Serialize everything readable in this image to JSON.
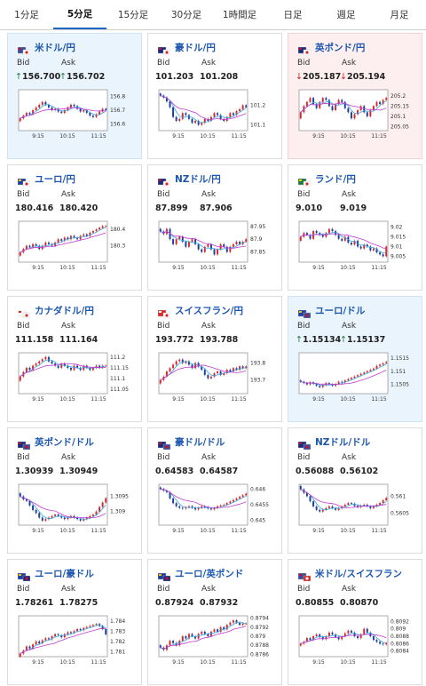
{
  "tabs": [
    {
      "label": "1分足",
      "active": false
    },
    {
      "label": "5分足",
      "active": true
    },
    {
      "label": "15分足",
      "active": false
    },
    {
      "label": "30分足",
      "active": false
    },
    {
      "label": "1時間足",
      "active": false
    },
    {
      "label": "日足",
      "active": false
    },
    {
      "label": "週足",
      "active": false
    },
    {
      "label": "月足",
      "active": false
    }
  ],
  "labels": {
    "bid": "Bid",
    "ask": "Ask"
  },
  "colors": {
    "accent": "#1f67c5",
    "up_candle": "#d52a2a",
    "down_candle": "#1c3f9c",
    "ma_short": "#3aa7e0",
    "ma_long": "#c23ad2",
    "up_bg": "#eaf4fc",
    "down_bg": "#fdefef"
  },
  "pairs": [
    {
      "name": "米ドル/円",
      "flag": "us-jp-flag-icon",
      "trend": "up",
      "bid": "156.700",
      "ask": "156.702",
      "chart_data": {
        "type": "candlestick",
        "x_ticks": [
          "9:15",
          "10:15",
          "11:15"
        ],
        "y_ticks": [
          "156.8",
          "156.7",
          "156.6"
        ],
        "ylim": [
          156.55,
          156.85
        ],
        "closes": [
          156.64,
          156.66,
          156.68,
          156.67,
          156.7,
          156.72,
          156.74,
          156.76,
          156.74,
          156.72,
          156.7,
          156.71,
          156.69,
          156.68,
          156.7,
          156.72,
          156.74,
          156.73,
          156.71,
          156.69,
          156.7,
          156.68,
          156.66,
          156.65,
          156.67,
          156.69,
          156.71,
          156.7
        ]
      }
    },
    {
      "name": "豪ドル/円",
      "flag": "au-jp-flag-icon",
      "trend": "none",
      "bid": "101.203",
      "ask": "101.208",
      "chart_data": {
        "type": "candlestick",
        "x_ticks": [
          "9:15",
          "10:15",
          "11:15"
        ],
        "y_ticks": [
          "101.2",
          "101.1"
        ],
        "ylim": [
          101.07,
          101.28
        ],
        "closes": [
          101.25,
          101.24,
          101.22,
          101.19,
          101.14,
          101.12,
          101.13,
          101.16,
          101.15,
          101.13,
          101.11,
          101.12,
          101.1,
          101.11,
          101.13,
          101.12,
          101.14,
          101.16,
          101.15,
          101.13,
          101.12,
          101.14,
          101.16,
          101.15,
          101.17,
          101.18,
          101.2,
          101.19
        ]
      }
    },
    {
      "name": "英ポンド/円",
      "flag": "gb-jp-flag-icon",
      "trend": "down",
      "bid": "205.187",
      "ask": "205.194",
      "chart_data": {
        "type": "candlestick",
        "x_ticks": [
          "9:15",
          "10:15",
          "11:15"
        ],
        "y_ticks": [
          "205.2",
          "205.15",
          "205.1",
          "205.05"
        ],
        "ylim": [
          205.03,
          205.23
        ],
        "closes": [
          205.12,
          205.15,
          205.17,
          205.19,
          205.16,
          205.14,
          205.17,
          205.19,
          205.18,
          205.15,
          205.13,
          205.16,
          205.18,
          205.17,
          205.14,
          205.12,
          205.09,
          205.11,
          205.13,
          205.15,
          205.12,
          205.1,
          205.13,
          205.15,
          205.17,
          205.16,
          205.18,
          205.19
        ]
      }
    },
    {
      "name": "ユーロ/円",
      "flag": "eu-jp-flag-icon",
      "trend": "none",
      "bid": "180.416",
      "ask": "180.420",
      "chart_data": {
        "type": "candlestick",
        "x_ticks": [
          "9:15",
          "10:15",
          "11:15"
        ],
        "y_ticks": [
          "180.4",
          "180.3"
        ],
        "ylim": [
          180.2,
          180.45
        ],
        "closes": [
          180.26,
          180.28,
          180.3,
          180.29,
          180.31,
          180.3,
          180.28,
          180.3,
          180.32,
          180.31,
          180.3,
          180.32,
          180.34,
          180.33,
          180.35,
          180.34,
          180.36,
          180.35,
          180.34,
          180.36,
          180.37,
          180.36,
          180.38,
          180.39,
          180.4,
          180.41,
          180.42,
          180.42
        ]
      }
    },
    {
      "name": "NZドル/円",
      "flag": "nz-jp-flag-icon",
      "trend": "none",
      "bid": "87.899",
      "ask": "87.906",
      "chart_data": {
        "type": "candlestick",
        "x_ticks": [
          "9:15",
          "10:15",
          "11:15"
        ],
        "y_ticks": [
          "87.95",
          "87.9",
          "87.85"
        ],
        "ylim": [
          87.81,
          87.97
        ],
        "closes": [
          87.93,
          87.92,
          87.94,
          87.9,
          87.88,
          87.9,
          87.91,
          87.89,
          87.87,
          87.89,
          87.9,
          87.88,
          87.86,
          87.85,
          87.87,
          87.88,
          87.86,
          87.84,
          87.86,
          87.88,
          87.87,
          87.85,
          87.87,
          87.88,
          87.89,
          87.88,
          87.89,
          87.9
        ]
      }
    },
    {
      "name": "ランド/円",
      "flag": "za-jp-flag-icon",
      "trend": "none",
      "bid": "9.010",
      "ask": "9.019",
      "chart_data": {
        "type": "candlestick",
        "x_ticks": [
          "9:15",
          "10:15",
          "11:15"
        ],
        "y_ticks": [
          "9.02",
          "9.015",
          "9.01",
          "9.005"
        ],
        "ylim": [
          9.002,
          9.023
        ],
        "closes": [
          9.015,
          9.017,
          9.016,
          9.014,
          9.018,
          9.017,
          9.016,
          9.015,
          9.017,
          9.019,
          9.018,
          9.016,
          9.014,
          9.013,
          9.015,
          9.012,
          9.011,
          9.013,
          9.01,
          9.009,
          9.011,
          9.01,
          9.008,
          9.009,
          9.007,
          9.006,
          9.005,
          9.01
        ]
      }
    },
    {
      "name": "カナダドル/円",
      "flag": "ca-jp-flag-icon",
      "trend": "none",
      "bid": "111.158",
      "ask": "111.164",
      "chart_data": {
        "type": "candlestick",
        "x_ticks": [
          "9:15",
          "10:15",
          "11:15"
        ],
        "y_ticks": [
          "111.2",
          "111.15",
          "111.1",
          "111.05"
        ],
        "ylim": [
          111.03,
          111.22
        ],
        "closes": [
          111.11,
          111.13,
          111.15,
          111.14,
          111.16,
          111.17,
          111.18,
          111.19,
          111.2,
          111.18,
          111.17,
          111.16,
          111.15,
          111.17,
          111.16,
          111.15,
          111.14,
          111.16,
          111.15,
          111.14,
          111.16,
          111.15,
          111.14,
          111.15,
          111.16,
          111.15,
          111.16,
          111.16
        ]
      }
    },
    {
      "name": "スイスフラン/円",
      "flag": "ch-jp-flag-icon",
      "trend": "none",
      "bid": "193.772",
      "ask": "193.788",
      "chart_data": {
        "type": "candlestick",
        "x_ticks": [
          "9:15",
          "10:15",
          "11:15"
        ],
        "y_ticks": [
          "193.8",
          "193.7"
        ],
        "ylim": [
          193.62,
          193.86
        ],
        "closes": [
          193.7,
          193.72,
          193.75,
          193.77,
          193.79,
          193.81,
          193.82,
          193.8,
          193.81,
          193.79,
          193.77,
          193.8,
          193.78,
          193.76,
          193.73,
          193.71,
          193.72,
          193.74,
          193.75,
          193.73,
          193.74,
          193.76,
          193.75,
          193.77,
          193.76,
          193.78,
          193.77,
          193.78
        ]
      }
    },
    {
      "name": "ユーロ/ドル",
      "flag": "eu-us-flag-icon",
      "trend": "up",
      "bid": "1.15134",
      "ask": "1.15137",
      "chart_data": {
        "type": "candlestick",
        "x_ticks": [
          "9:15",
          "10:15",
          "11:15"
        ],
        "y_ticks": [
          "1.1515",
          "1.151",
          "1.1505"
        ],
        "ylim": [
          1.15015,
          1.1517
        ],
        "closes": [
          1.1506,
          1.15055,
          1.1505,
          1.15058,
          1.15052,
          1.15045,
          1.1504,
          1.15048,
          1.15055,
          1.1505,
          1.15045,
          1.15052,
          1.1506,
          1.15058,
          1.15065,
          1.1507,
          1.15075,
          1.1508,
          1.15085,
          1.1509,
          1.15095,
          1.151,
          1.15105,
          1.1511,
          1.1512,
          1.15125,
          1.1513,
          1.15135
        ]
      }
    },
    {
      "name": "英ポンド/ドル",
      "flag": "gb-us-flag-icon",
      "trend": "none",
      "bid": "1.30939",
      "ask": "1.30949",
      "chart_data": {
        "type": "candlestick",
        "x_ticks": [
          "9:15",
          "10:15",
          "11:15"
        ],
        "y_ticks": [
          "1.3095",
          "1.309"
        ],
        "ylim": [
          1.30855,
          1.3099
        ],
        "closes": [
          1.3095,
          1.3094,
          1.30935,
          1.3092,
          1.30905,
          1.30895,
          1.3088,
          1.3087,
          1.30875,
          1.3088,
          1.30885,
          1.3089,
          1.30885,
          1.3088,
          1.30875,
          1.3088,
          1.30885,
          1.3088,
          1.30875,
          1.3087,
          1.30875,
          1.3088,
          1.30885,
          1.3089,
          1.309,
          1.30915,
          1.3093,
          1.30944
        ]
      }
    },
    {
      "name": "豪ドル/ドル",
      "flag": "au-us-flag-icon",
      "trend": "none",
      "bid": "0.64583",
      "ask": "0.64587",
      "chart_data": {
        "type": "candlestick",
        "x_ticks": [
          "9:15",
          "10:15",
          "11:15"
        ],
        "y_ticks": [
          "0.646",
          "0.6455",
          "0.645"
        ],
        "ylim": [
          0.64485,
          0.64615
        ],
        "closes": [
          0.646,
          0.64595,
          0.6459,
          0.6457,
          0.64555,
          0.64545,
          0.6454,
          0.64538,
          0.64542,
          0.64545,
          0.6454,
          0.64535,
          0.6454,
          0.64545,
          0.64542,
          0.64538,
          0.64535,
          0.6454,
          0.64545,
          0.64548,
          0.6455,
          0.64555,
          0.6456,
          0.64565,
          0.6457,
          0.64575,
          0.6458,
          0.64585
        ]
      }
    },
    {
      "name": "NZドル/ドル",
      "flag": "nz-us-flag-icon",
      "trend": "none",
      "bid": "0.56088",
      "ask": "0.56102",
      "chart_data": {
        "type": "candlestick",
        "x_ticks": [
          "9:15",
          "10:15",
          "11:15"
        ],
        "y_ticks": [
          "0.561",
          "0.5605"
        ],
        "ylim": [
          0.56015,
          0.56135
        ],
        "closes": [
          0.5612,
          0.5611,
          0.561,
          0.56085,
          0.5607,
          0.5606,
          0.56055,
          0.5606,
          0.56065,
          0.5607,
          0.56065,
          0.5606,
          0.56065,
          0.5607,
          0.56075,
          0.5608,
          0.56078,
          0.56072,
          0.56068,
          0.56072,
          0.56075,
          0.5607,
          0.56065,
          0.5607,
          0.56075,
          0.5608,
          0.56088,
          0.56095
        ]
      }
    },
    {
      "name": "ユーロ/豪ドル",
      "flag": "eu-au-flag-icon",
      "trend": "none",
      "bid": "1.78261",
      "ask": "1.78275",
      "chart_data": {
        "type": "candlestick",
        "x_ticks": [
          "9:15",
          "10:15",
          "11:15"
        ],
        "y_ticks": [
          "1.784",
          "1.783",
          "1.782",
          "1.781"
        ],
        "ylim": [
          1.7805,
          1.7845
        ],
        "closes": [
          1.7808,
          1.7811,
          1.7815,
          1.7813,
          1.7817,
          1.782,
          1.7818,
          1.7821,
          1.7823,
          1.7822,
          1.7825,
          1.7827,
          1.7826,
          1.7824,
          1.7827,
          1.7829,
          1.7828,
          1.783,
          1.7832,
          1.7831,
          1.7833,
          1.7834,
          1.7835,
          1.7836,
          1.7837,
          1.7835,
          1.7832,
          1.78268
        ]
      }
    },
    {
      "name": "ユーロ/英ポンド",
      "flag": "eu-gb-flag-icon",
      "trend": "none",
      "bid": "0.87924",
      "ask": "0.87932",
      "chart_data": {
        "type": "candlestick",
        "x_ticks": [
          "9:15",
          "10:15",
          "11:15"
        ],
        "y_ticks": [
          "0.8794",
          "0.8792",
          "0.879",
          "0.8788",
          "0.8786"
        ],
        "ylim": [
          0.87855,
          0.87945
        ],
        "closes": [
          0.87875,
          0.8787,
          0.8788,
          0.8789,
          0.87885,
          0.8788,
          0.8789,
          0.879,
          0.87895,
          0.87905,
          0.879,
          0.87895,
          0.87905,
          0.8791,
          0.87905,
          0.879,
          0.8791,
          0.87915,
          0.8791,
          0.8792,
          0.87915,
          0.87925,
          0.8793,
          0.87935,
          0.8793,
          0.87925,
          0.87928,
          0.87928
        ]
      }
    },
    {
      "name": "米ドル/スイスフラン",
      "flag": "us-ch-flag-icon",
      "trend": "none",
      "bid": "0.80855",
      "ask": "0.80870",
      "chart_data": {
        "type": "candlestick",
        "x_ticks": [
          "9:15",
          "10:15",
          "11:15"
        ],
        "y_ticks": [
          "0.8092",
          "0.809",
          "0.8088",
          "0.8086",
          "0.8084"
        ],
        "ylim": [
          0.80825,
          0.80935
        ],
        "closes": [
          0.8086,
          0.80865,
          0.80875,
          0.8087,
          0.8088,
          0.80885,
          0.80878,
          0.80872,
          0.8088,
          0.8089,
          0.80885,
          0.80878,
          0.80872,
          0.8088,
          0.80888,
          0.80895,
          0.8089,
          0.8088,
          0.80875,
          0.80885,
          0.809,
          0.8089,
          0.8088,
          0.8087,
          0.80865,
          0.8086,
          0.80858,
          0.80862
        ]
      }
    }
  ]
}
